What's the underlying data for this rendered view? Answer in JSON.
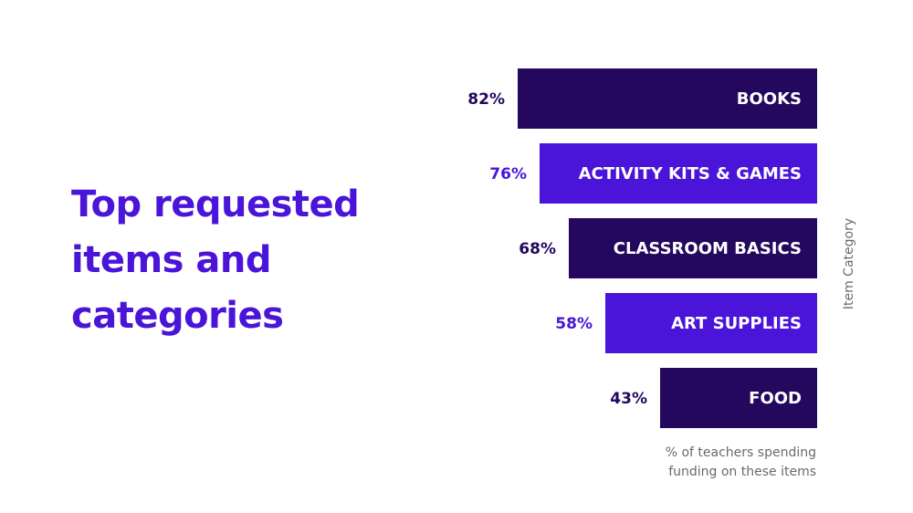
{
  "title_lines": [
    "Top requested",
    "items and",
    "categories"
  ],
  "colors": {
    "title": "#4a14d9",
    "bar_dark": "#23085e",
    "bar_bright": "#4a14d9",
    "value_dark": "#23085e",
    "value_bright": "#4a14d9",
    "axis_text": "#6a6a6a"
  },
  "chart_data": {
    "type": "bar",
    "orientation": "horizontal",
    "categories": [
      "BOOKS",
      "ACTIVITY KITS & GAMES",
      "CLASSROOM BASICS",
      "ART SUPPLIES",
      "FOOD"
    ],
    "values": [
      82,
      76,
      68,
      58,
      43
    ],
    "value_labels": [
      "82%",
      "76%",
      "68%",
      "58%",
      "43%"
    ],
    "bar_colors": [
      "#23085e",
      "#4a14d9",
      "#23085e",
      "#4a14d9",
      "#23085e"
    ],
    "ylabel": "Item Category",
    "xlabel_lines": [
      "% of teachers spending",
      "funding on these items"
    ],
    "grid": false,
    "legend": false
  }
}
